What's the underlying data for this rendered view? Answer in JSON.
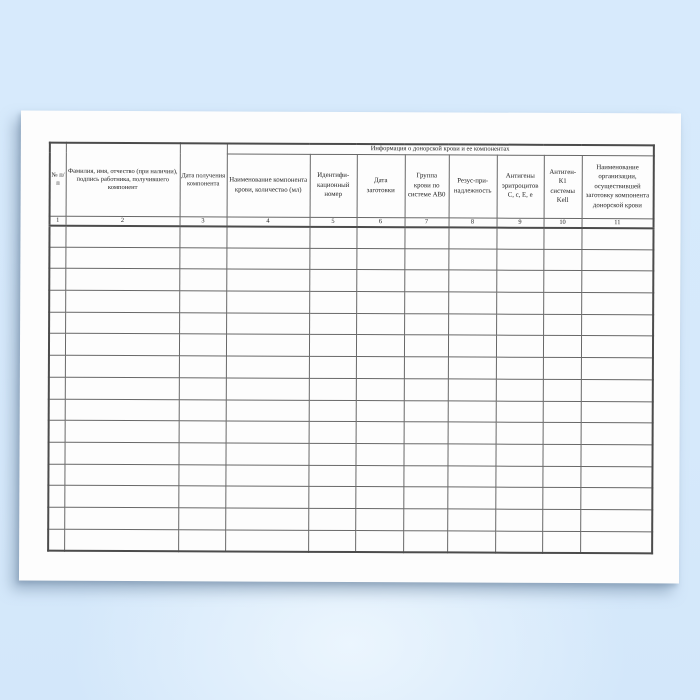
{
  "document": {
    "table": {
      "info_group_header": "Информация о донорской крови и ее компонентах",
      "columns": [
        {
          "num": "1",
          "label": "№ п/п"
        },
        {
          "num": "2",
          "label": "Фамилия, имя, отчество (при наличии), подпись работника, получившего компонент"
        },
        {
          "num": "3",
          "label": "Дата получения компонента"
        },
        {
          "num": "4",
          "label": "Наименование компонента крови, количество (мл)"
        },
        {
          "num": "5",
          "label": "Идентифи-кационный номер"
        },
        {
          "num": "6",
          "label": "Дата заготовки"
        },
        {
          "num": "7",
          "label": "Группа крови по системе АВ0"
        },
        {
          "num": "8",
          "label": "Резус-при-надлежность"
        },
        {
          "num": "9",
          "label": "Антигены эритроцитов C, c, E, e"
        },
        {
          "num": "10",
          "label": "Антиген-К1 системы Kell"
        },
        {
          "num": "11",
          "label": "Наименование организации, осуществившей заготовку компонента донорской крови"
        }
      ],
      "empty_row_count": 15
    }
  }
}
